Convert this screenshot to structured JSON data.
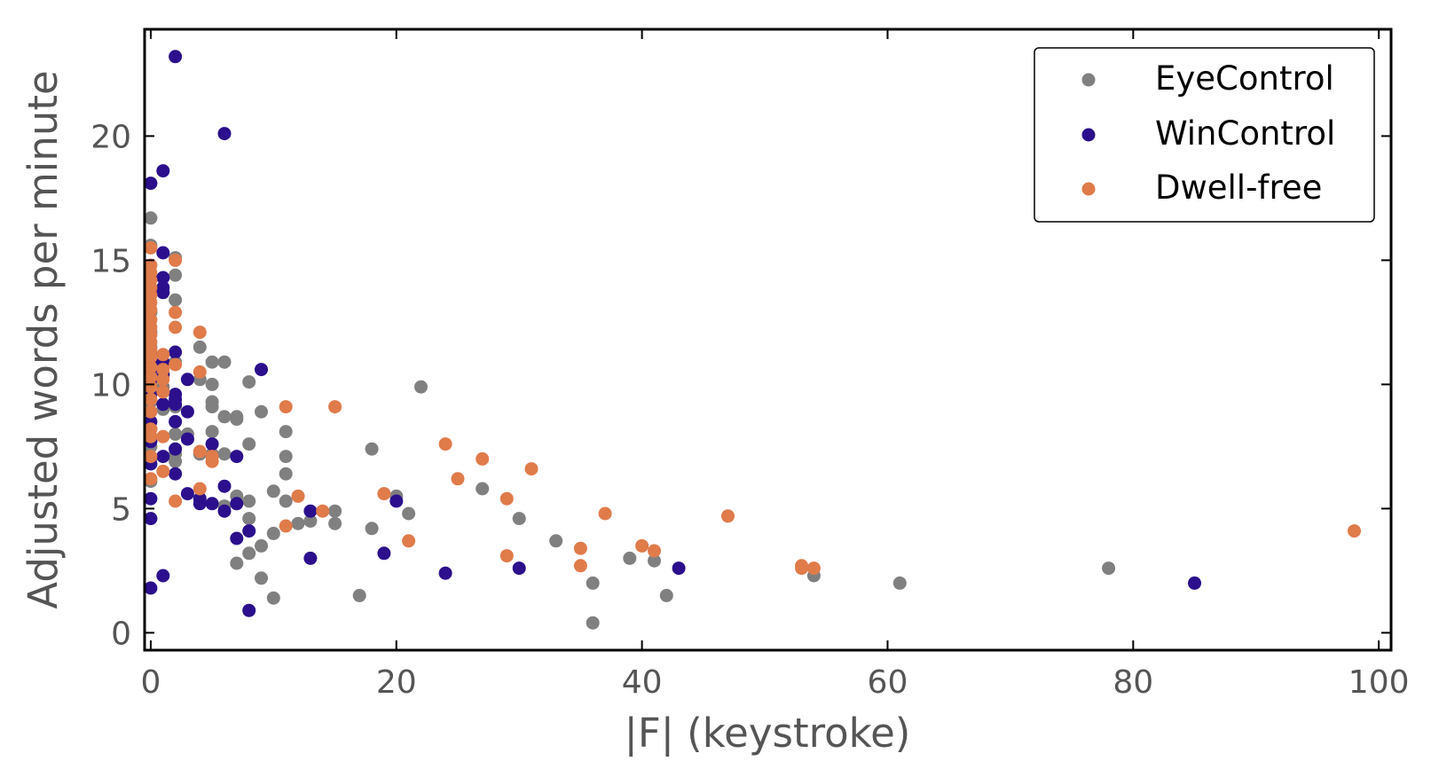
{
  "chart_data": {
    "type": "scatter",
    "title": "",
    "xlabel": "|F| (keystroke)",
    "ylabel": "Adjusted words per minute",
    "xlim": [
      -0.5,
      101
    ],
    "ylim": [
      -0.7,
      24.3
    ],
    "xticks": [
      0,
      20,
      40,
      60,
      80,
      100
    ],
    "yticks": [
      0,
      5,
      10,
      15,
      20
    ],
    "grid": false,
    "legend_position": "top-right",
    "series": [
      {
        "name": "EyeControl",
        "color": "#808080",
        "points": [
          [
            0,
            16.7
          ],
          [
            0,
            15.6
          ],
          [
            0,
            14.3
          ],
          [
            0,
            13.7
          ],
          [
            0,
            12.9
          ],
          [
            0,
            12.1
          ],
          [
            0,
            11.5
          ],
          [
            0,
            10.8
          ],
          [
            0,
            10.1
          ],
          [
            0,
            9.3
          ],
          [
            0,
            8.2
          ],
          [
            0,
            7.5
          ],
          [
            0,
            7.0
          ],
          [
            0,
            6.1
          ],
          [
            1,
            10.4
          ],
          [
            1,
            9.9
          ],
          [
            1,
            9.0
          ],
          [
            2,
            15.1
          ],
          [
            2,
            14.4
          ],
          [
            2,
            13.4
          ],
          [
            2,
            10.9
          ],
          [
            2,
            9.1
          ],
          [
            2,
            8.0
          ],
          [
            2,
            7.2
          ],
          [
            2,
            6.9
          ],
          [
            3,
            8.0
          ],
          [
            3,
            7.8
          ],
          [
            4,
            11.5
          ],
          [
            4,
            10.2
          ],
          [
            4,
            7.2
          ],
          [
            5,
            10.9
          ],
          [
            5,
            10.0
          ],
          [
            5,
            9.3
          ],
          [
            5,
            9.1
          ],
          [
            5,
            8.1
          ],
          [
            5,
            7.2
          ],
          [
            6,
            10.9
          ],
          [
            6,
            8.7
          ],
          [
            6,
            7.2
          ],
          [
            6,
            5.1
          ],
          [
            7,
            8.7
          ],
          [
            7,
            8.6
          ],
          [
            7,
            5.5
          ],
          [
            7,
            2.8
          ],
          [
            8,
            10.1
          ],
          [
            8,
            7.6
          ],
          [
            8,
            5.3
          ],
          [
            8,
            4.6
          ],
          [
            8,
            3.2
          ],
          [
            9,
            8.9
          ],
          [
            9,
            3.5
          ],
          [
            9,
            2.2
          ],
          [
            10,
            5.7
          ],
          [
            10,
            4.0
          ],
          [
            10,
            1.4
          ],
          [
            11,
            8.1
          ],
          [
            11,
            7.1
          ],
          [
            11,
            6.4
          ],
          [
            11,
            5.3
          ],
          [
            12,
            4.4
          ],
          [
            13,
            4.5
          ],
          [
            15,
            4.9
          ],
          [
            15,
            4.4
          ],
          [
            17,
            1.5
          ],
          [
            18,
            7.4
          ],
          [
            18,
            4.2
          ],
          [
            20,
            5.5
          ],
          [
            21,
            4.8
          ],
          [
            22,
            9.9
          ],
          [
            27,
            5.8
          ],
          [
            30,
            4.6
          ],
          [
            33,
            3.7
          ],
          [
            36,
            2.0
          ],
          [
            36,
            0.4
          ],
          [
            39,
            3.0
          ],
          [
            41,
            2.9
          ],
          [
            42,
            1.5
          ],
          [
            54,
            2.3
          ],
          [
            61,
            2.0
          ],
          [
            78,
            2.6
          ]
        ]
      },
      {
        "name": "WinControl",
        "color": "#2b0f8c",
        "points": [
          [
            0,
            18.1
          ],
          [
            0,
            11.2
          ],
          [
            0,
            10.9
          ],
          [
            0,
            10.6
          ],
          [
            0,
            10.2
          ],
          [
            0,
            9.6
          ],
          [
            0,
            8.5
          ],
          [
            0,
            7.7
          ],
          [
            0,
            6.8
          ],
          [
            0,
            5.4
          ],
          [
            0,
            4.6
          ],
          [
            0,
            1.8
          ],
          [
            1,
            18.6
          ],
          [
            1,
            15.3
          ],
          [
            1,
            14.3
          ],
          [
            1,
            13.9
          ],
          [
            1,
            13.7
          ],
          [
            1,
            10.9
          ],
          [
            1,
            10.4
          ],
          [
            1,
            9.2
          ],
          [
            1,
            7.1
          ],
          [
            1,
            2.3
          ],
          [
            2,
            23.2
          ],
          [
            2,
            11.3
          ],
          [
            2,
            9.6
          ],
          [
            2,
            9.4
          ],
          [
            2,
            9.2
          ],
          [
            2,
            8.5
          ],
          [
            2,
            7.4
          ],
          [
            2,
            6.4
          ],
          [
            3,
            10.2
          ],
          [
            3,
            8.9
          ],
          [
            3,
            7.8
          ],
          [
            3,
            5.6
          ],
          [
            4,
            5.4
          ],
          [
            4,
            5.2
          ],
          [
            5,
            7.6
          ],
          [
            5,
            5.2
          ],
          [
            6,
            20.1
          ],
          [
            6,
            5.9
          ],
          [
            6,
            4.9
          ],
          [
            7,
            7.1
          ],
          [
            7,
            5.2
          ],
          [
            7,
            3.8
          ],
          [
            8,
            4.1
          ],
          [
            8,
            0.9
          ],
          [
            9,
            10.6
          ],
          [
            13,
            4.9
          ],
          [
            13,
            3.0
          ],
          [
            19,
            3.2
          ],
          [
            20,
            5.3
          ],
          [
            24,
            2.4
          ],
          [
            30,
            2.6
          ],
          [
            43,
            2.6
          ],
          [
            85,
            2.0
          ]
        ]
      },
      {
        "name": "Dwell-free",
        "color": "#e07b4a",
        "points": [
          [
            0,
            15.5
          ],
          [
            0,
            14.8
          ],
          [
            0,
            14.5
          ],
          [
            0,
            14.2
          ],
          [
            0,
            13.9
          ],
          [
            0,
            13.6
          ],
          [
            0,
            13.3
          ],
          [
            0,
            13.0
          ],
          [
            0,
            12.6
          ],
          [
            0,
            12.3
          ],
          [
            0,
            12.0
          ],
          [
            0,
            11.7
          ],
          [
            0,
            11.4
          ],
          [
            0,
            11.1
          ],
          [
            0,
            10.7
          ],
          [
            0,
            10.3
          ],
          [
            0,
            9.9
          ],
          [
            0,
            9.4
          ],
          [
            0,
            8.9
          ],
          [
            0,
            8.2
          ],
          [
            0,
            7.9
          ],
          [
            0,
            7.1
          ],
          [
            0,
            6.2
          ],
          [
            1,
            11.2
          ],
          [
            1,
            10.6
          ],
          [
            1,
            10.2
          ],
          [
            1,
            9.7
          ],
          [
            1,
            7.9
          ],
          [
            1,
            6.5
          ],
          [
            2,
            15.0
          ],
          [
            2,
            12.9
          ],
          [
            2,
            12.3
          ],
          [
            2,
            10.8
          ],
          [
            2,
            5.3
          ],
          [
            4,
            12.1
          ],
          [
            4,
            10.5
          ],
          [
            4,
            7.3
          ],
          [
            4,
            5.8
          ],
          [
            5,
            7.1
          ],
          [
            5,
            6.9
          ],
          [
            11,
            9.1
          ],
          [
            11,
            4.3
          ],
          [
            12,
            5.5
          ],
          [
            14,
            4.9
          ],
          [
            15,
            9.1
          ],
          [
            19,
            5.6
          ],
          [
            21,
            3.7
          ],
          [
            24,
            7.6
          ],
          [
            25,
            6.2
          ],
          [
            27,
            7.0
          ],
          [
            29,
            5.4
          ],
          [
            29,
            3.1
          ],
          [
            31,
            6.6
          ],
          [
            35,
            3.4
          ],
          [
            35,
            2.7
          ],
          [
            37,
            4.8
          ],
          [
            40,
            3.5
          ],
          [
            41,
            3.3
          ],
          [
            47,
            4.7
          ],
          [
            53,
            2.7
          ],
          [
            53,
            2.6
          ],
          [
            54,
            2.6
          ],
          [
            98,
            4.1
          ]
        ]
      }
    ]
  }
}
